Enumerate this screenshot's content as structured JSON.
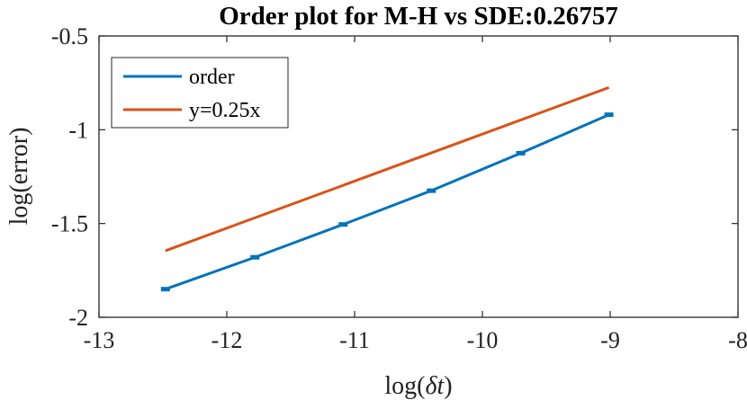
{
  "chart_data": {
    "type": "line",
    "title": "Order plot for M-H vs SDE:0.26757",
    "xlabel_prefix": "log(",
    "xlabel_symbol": "δt",
    "xlabel_suffix": ")",
    "ylabel": "log(error)",
    "xlim": [
      -13,
      -8
    ],
    "ylim": [
      -2,
      -0.5
    ],
    "xticks": [
      -13,
      -12,
      -11,
      -10,
      -9,
      -8
    ],
    "xtick_labels": [
      "-13",
      "-12",
      "-11",
      "-10",
      "-9",
      "-8"
    ],
    "yticks": [
      -2,
      -1.5,
      -1,
      -0.5
    ],
    "ytick_labels": [
      "-2",
      "-1.5",
      "-1",
      "-0.5"
    ],
    "grid": false,
    "legend_position": "top-left",
    "series": [
      {
        "name": "order",
        "color": "#0072BD",
        "markers": true,
        "x": [
          -12.48,
          -11.78,
          -11.09,
          -10.4,
          -9.7,
          -9.01
        ],
        "y": [
          -1.85,
          -1.68,
          -1.505,
          -1.325,
          -1.125,
          -0.92
        ]
      },
      {
        "name": "y=0.25x",
        "color": "#D95319",
        "markers": false,
        "x": [
          -12.48,
          -9.01
        ],
        "y": [
          -1.645,
          -0.775
        ]
      }
    ]
  }
}
